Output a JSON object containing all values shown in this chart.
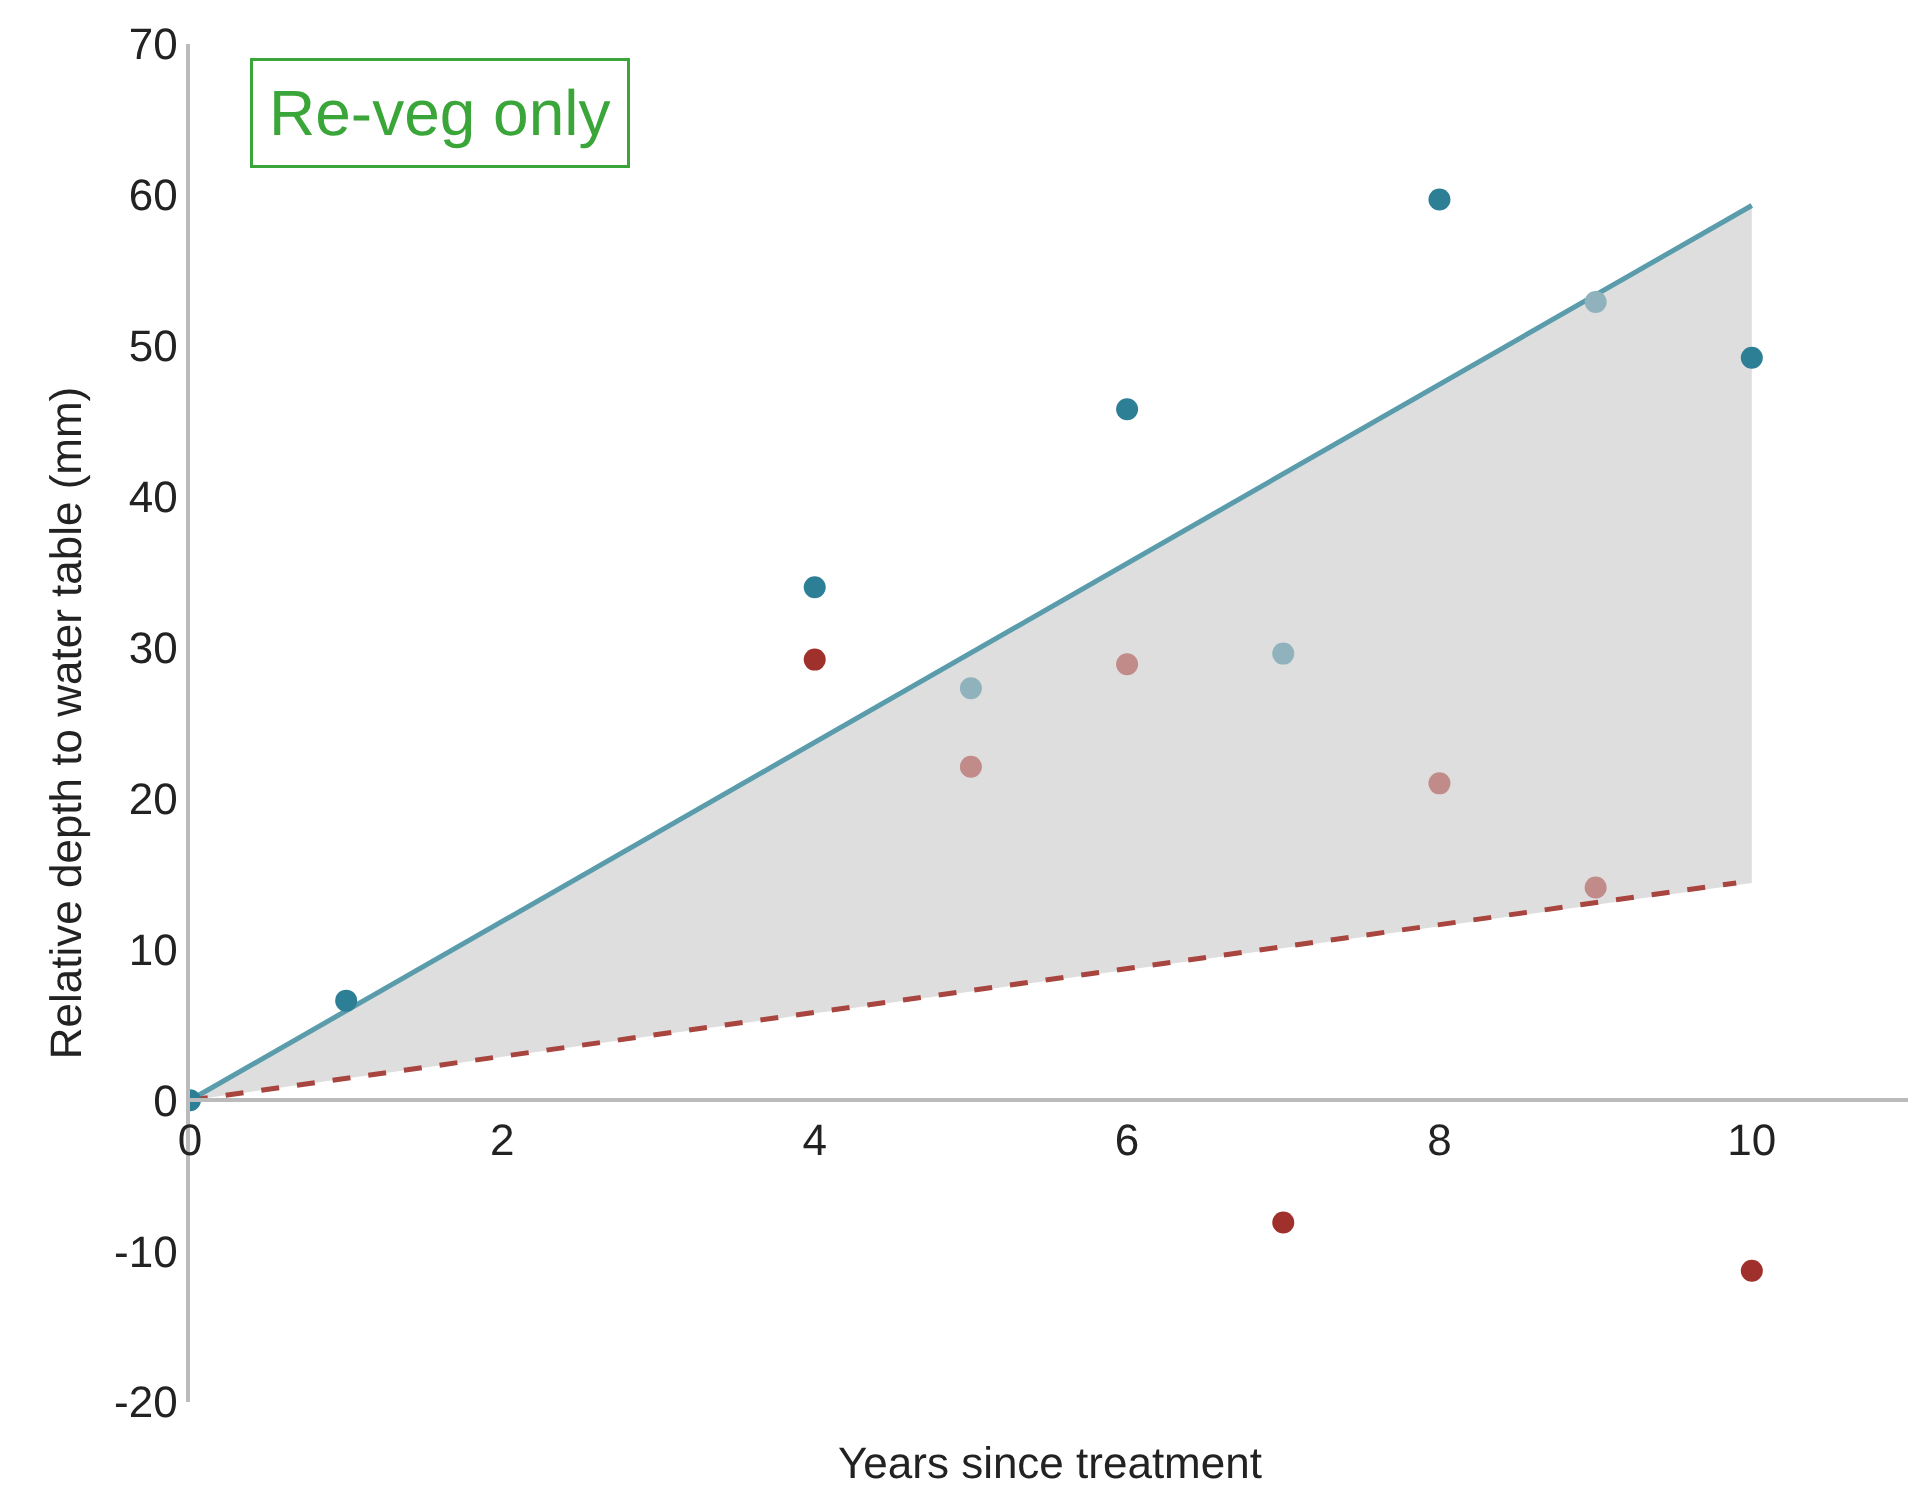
{
  "chart_data": {
    "type": "scatter",
    "xlabel": "Years since treatment",
    "ylabel": "Relative depth to water table (mm)",
    "annotations": [
      "Re-veg only"
    ],
    "series": [
      {
        "type": "line",
        "color": "#5a9cab",
        "x": [
          0,
          10
        ],
        "values": [
          0,
          59.3
        ],
        "lower": [
          0,
          14.4
        ],
        "upper": [
          0,
          59.3
        ],
        "marker": "none",
        "line_style": "solid"
      },
      {
        "type": "line",
        "color": "#a8453f",
        "x": [
          0,
          9.9
        ],
        "values": [
          0,
          14.4
        ],
        "marker": "none",
        "line_style": "dashed"
      },
      {
        "color": "#2d7f96",
        "x": [
          0,
          1,
          4,
          6,
          8,
          10
        ],
        "values": [
          0,
          6.6,
          34,
          45.8,
          59.7,
          49.2
        ],
        "marker": "circle"
      },
      {
        "color": "#8fb2bd",
        "x": [
          5,
          7,
          9
        ],
        "values": [
          27.3,
          29.6,
          52.9
        ],
        "marker": "circle"
      },
      {
        "color": "#a0302b",
        "x": [
          4,
          7,
          10
        ],
        "values": [
          29.2,
          -8.1,
          -11.3
        ],
        "marker": "circle"
      },
      {
        "color": "#c08b89",
        "x": [
          5,
          6,
          8,
          9
        ],
        "values": [
          22.1,
          28.9,
          21,
          14.1
        ],
        "marker": "circle"
      }
    ],
    "xlim": [
      0,
      11
    ],
    "xticks": [
      0,
      2,
      4,
      6,
      8,
      10
    ],
    "ylim": [
      -20,
      70
    ],
    "yticks": [
      -20,
      -10,
      0,
      10,
      20,
      30,
      40,
      50,
      60,
      70
    ]
  }
}
